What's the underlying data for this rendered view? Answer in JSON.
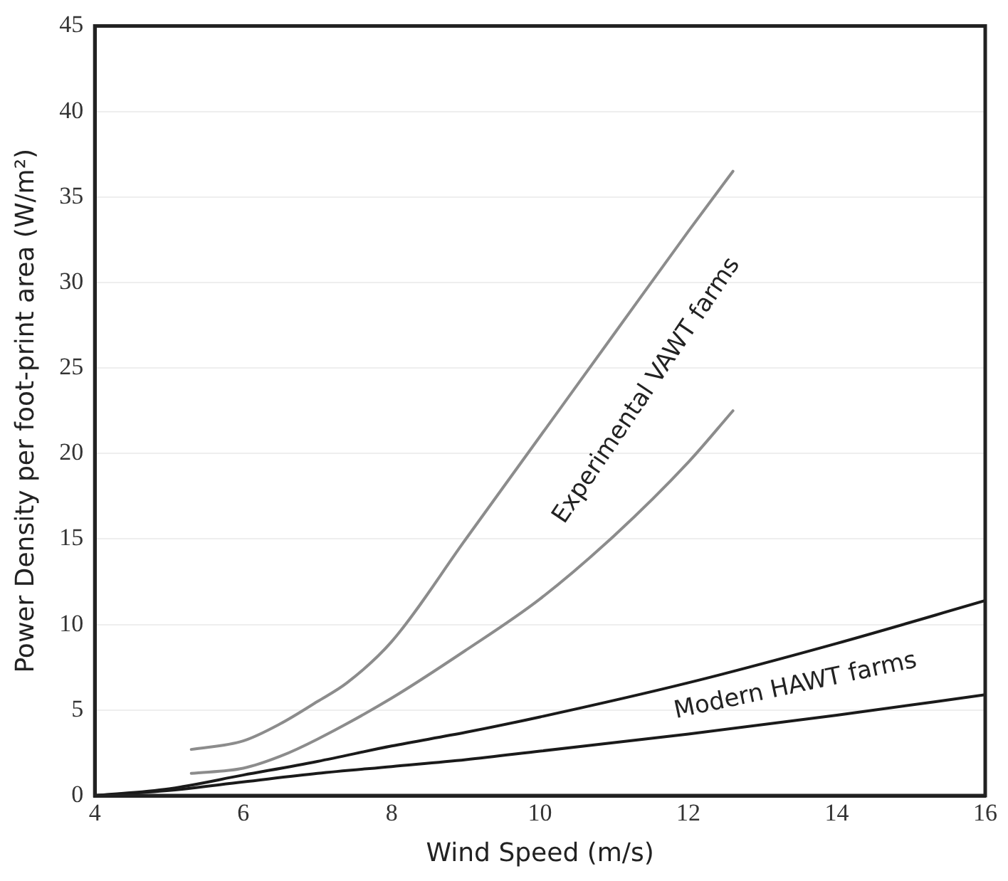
{
  "chart_data": {
    "type": "line",
    "xlabel": "Wind Speed (m/s)",
    "ylabel": "Power Density per foot-print area (W/m²)",
    "xlim": [
      4,
      16
    ],
    "xticks": [
      4,
      6,
      8,
      10,
      12,
      14,
      16
    ],
    "ylim": [
      0,
      45
    ],
    "yticks": [
      0,
      5,
      10,
      15,
      20,
      25,
      30,
      35,
      40,
      45
    ],
    "grid": "y",
    "legend": false,
    "marker": "none",
    "line_style": "solid",
    "series": [
      {
        "color": "#8c8c8c",
        "x": [
          5.3,
          6,
          6.5,
          7,
          7.4,
          8,
          9,
          10,
          11,
          12,
          12.6
        ],
        "values": [
          2.7,
          3.2,
          4.2,
          5.5,
          6.6,
          9,
          15,
          21,
          27,
          33,
          36.5
        ]
      },
      {
        "color": "#8c8c8c",
        "x": [
          5.3,
          6,
          6.5,
          7,
          8,
          9,
          10,
          11,
          12,
          12.6
        ],
        "values": [
          1.3,
          1.6,
          2.3,
          3.3,
          5.7,
          8.5,
          11.5,
          15.2,
          19.5,
          22.5
        ]
      },
      {
        "color": "#1a1a1a",
        "x": [
          4,
          5,
          6,
          7,
          8,
          9,
          10,
          12,
          14,
          16
        ],
        "values": [
          0,
          0.4,
          1.2,
          2,
          2.9,
          3.7,
          4.6,
          6.6,
          8.9,
          11.4
        ]
      },
      {
        "color": "#1a1a1a",
        "x": [
          4,
          5,
          6,
          7,
          8,
          9,
          10,
          12,
          14,
          16
        ],
        "values": [
          0,
          0.3,
          0.8,
          1.3,
          1.7,
          2.1,
          2.6,
          3.6,
          4.7,
          5.9
        ]
      }
    ],
    "annotations": [
      "Experimental VAWT farms",
      "Modern HAWT farms"
    ]
  }
}
